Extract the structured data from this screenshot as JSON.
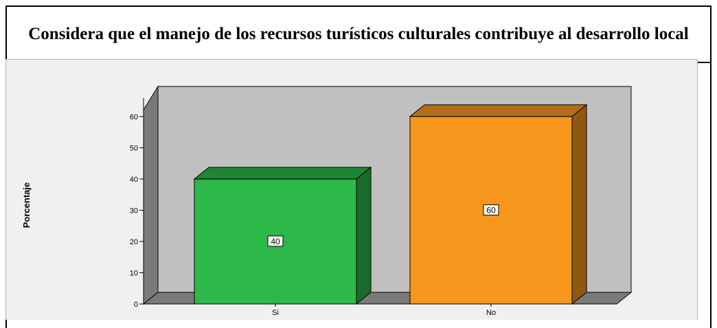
{
  "chart_data": {
    "type": "bar",
    "title": "Considera que el manejo de los recursos turísticos culturales contribuye al desarrollo local",
    "ylabel": "Porcentaje",
    "xlabel": "",
    "categories": [
      "Si",
      "No"
    ],
    "values": [
      40,
      60
    ],
    "data_labels": [
      "40",
      "60"
    ],
    "yticks": [
      0,
      10,
      20,
      30,
      40,
      50,
      60
    ],
    "ylim": [
      0,
      65
    ],
    "colors": [
      "#2db84a",
      "#f7971e"
    ],
    "grid": false,
    "legend": "none",
    "style": "3d-bar"
  }
}
